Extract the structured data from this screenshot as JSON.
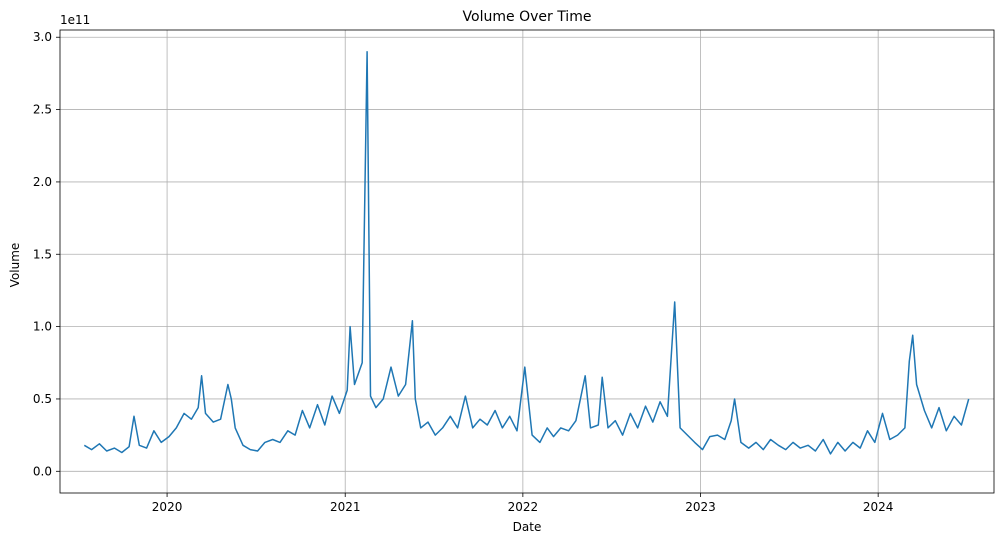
{
  "chart_data": {
    "type": "line",
    "title": "Volume Over Time",
    "xlabel": "Date",
    "ylabel": "Volume",
    "y_offset_label": "1e11",
    "xlim": [
      "2019-05-26",
      "2024-08-26"
    ],
    "ylim": [
      -0.15,
      3.05
    ],
    "y_unit_multiplier": 100000000000.0,
    "x_ticks": [
      {
        "value": "2020-01-01",
        "label": "2020"
      },
      {
        "value": "2021-01-01",
        "label": "2021"
      },
      {
        "value": "2022-01-01",
        "label": "2022"
      },
      {
        "value": "2023-01-01",
        "label": "2023"
      },
      {
        "value": "2024-01-01",
        "label": "2024"
      }
    ],
    "y_ticks": [
      {
        "value": 0.0,
        "label": "0.0"
      },
      {
        "value": 0.5,
        "label": "0.5"
      },
      {
        "value": 1.0,
        "label": "1.0"
      },
      {
        "value": 1.5,
        "label": "1.5"
      },
      {
        "value": 2.0,
        "label": "2.0"
      },
      {
        "value": 2.5,
        "label": "2.5"
      },
      {
        "value": 3.0,
        "label": "3.0"
      }
    ],
    "grid": true,
    "series_color": "#1f77b4",
    "series": [
      {
        "x": [
          "2019-07-15",
          "2019-07-30",
          "2019-08-15",
          "2019-08-30",
          "2019-09-15",
          "2019-09-30",
          "2019-10-15",
          "2019-10-25",
          "2019-11-05",
          "2019-11-20",
          "2019-12-05",
          "2019-12-20",
          "2020-01-05",
          "2020-01-20",
          "2020-02-05",
          "2020-02-20",
          "2020-03-05",
          "2020-03-12",
          "2020-03-20",
          "2020-04-05",
          "2020-04-20",
          "2020-05-05",
          "2020-05-12",
          "2020-05-20",
          "2020-06-05",
          "2020-06-20",
          "2020-07-05",
          "2020-07-20",
          "2020-08-05",
          "2020-08-20",
          "2020-09-05",
          "2020-09-20",
          "2020-10-05",
          "2020-10-20",
          "2020-11-05",
          "2020-11-20",
          "2020-12-05",
          "2020-12-20",
          "2021-01-05",
          "2021-01-11",
          "2021-01-20",
          "2021-02-05",
          "2021-02-15",
          "2021-02-22",
          "2021-03-05",
          "2021-03-20",
          "2021-04-05",
          "2021-04-20",
          "2021-05-05",
          "2021-05-19",
          "2021-05-25",
          "2021-06-05",
          "2021-06-20",
          "2021-07-05",
          "2021-07-20",
          "2021-08-05",
          "2021-08-20",
          "2021-09-05",
          "2021-09-20",
          "2021-10-05",
          "2021-10-20",
          "2021-11-05",
          "2021-11-20",
          "2021-12-05",
          "2021-12-20",
          "2022-01-05",
          "2022-01-20",
          "2022-02-05",
          "2022-02-20",
          "2022-03-05",
          "2022-03-20",
          "2022-04-05",
          "2022-04-20",
          "2022-05-09",
          "2022-05-20",
          "2022-06-05",
          "2022-06-13",
          "2022-06-25",
          "2022-07-10",
          "2022-07-25",
          "2022-08-10",
          "2022-08-25",
          "2022-09-10",
          "2022-09-25",
          "2022-10-10",
          "2022-10-25",
          "2022-11-09",
          "2022-11-20",
          "2022-12-05",
          "2022-12-20",
          "2023-01-05",
          "2023-01-20",
          "2023-02-05",
          "2023-02-20",
          "2023-03-05",
          "2023-03-12",
          "2023-03-25",
          "2023-04-10",
          "2023-04-25",
          "2023-05-10",
          "2023-05-25",
          "2023-06-10",
          "2023-06-25",
          "2023-07-10",
          "2023-07-25",
          "2023-08-10",
          "2023-08-25",
          "2023-09-10",
          "2023-09-25",
          "2023-10-10",
          "2023-10-25",
          "2023-11-10",
          "2023-11-25",
          "2023-12-10",
          "2023-12-25",
          "2024-01-10",
          "2024-01-25",
          "2024-02-10",
          "2024-02-25",
          "2024-03-05",
          "2024-03-12",
          "2024-03-20",
          "2024-04-05",
          "2024-04-20",
          "2024-05-05",
          "2024-05-20",
          "2024-06-05",
          "2024-06-20",
          "2024-07-05"
        ],
        "values": [
          0.18,
          0.15,
          0.19,
          0.14,
          0.16,
          0.13,
          0.17,
          0.38,
          0.18,
          0.16,
          0.28,
          0.2,
          0.24,
          0.3,
          0.4,
          0.36,
          0.44,
          0.66,
          0.4,
          0.34,
          0.36,
          0.6,
          0.5,
          0.3,
          0.18,
          0.15,
          0.14,
          0.2,
          0.22,
          0.2,
          0.28,
          0.25,
          0.42,
          0.3,
          0.46,
          0.32,
          0.52,
          0.4,
          0.56,
          1.0,
          0.6,
          0.75,
          2.9,
          0.52,
          0.44,
          0.5,
          0.72,
          0.52,
          0.6,
          1.04,
          0.5,
          0.3,
          0.34,
          0.25,
          0.3,
          0.38,
          0.3,
          0.52,
          0.3,
          0.36,
          0.32,
          0.42,
          0.3,
          0.38,
          0.28,
          0.72,
          0.25,
          0.2,
          0.3,
          0.24,
          0.3,
          0.28,
          0.35,
          0.66,
          0.3,
          0.32,
          0.65,
          0.3,
          0.35,
          0.25,
          0.4,
          0.3,
          0.45,
          0.34,
          0.48,
          0.38,
          1.17,
          0.3,
          0.25,
          0.2,
          0.15,
          0.24,
          0.25,
          0.22,
          0.35,
          0.5,
          0.2,
          0.16,
          0.2,
          0.15,
          0.22,
          0.18,
          0.15,
          0.2,
          0.16,
          0.18,
          0.14,
          0.22,
          0.12,
          0.2,
          0.14,
          0.2,
          0.16,
          0.28,
          0.2,
          0.4,
          0.22,
          0.25,
          0.3,
          0.76,
          0.94,
          0.6,
          0.42,
          0.3,
          0.44,
          0.28,
          0.38,
          0.32,
          0.5
        ]
      }
    ]
  }
}
